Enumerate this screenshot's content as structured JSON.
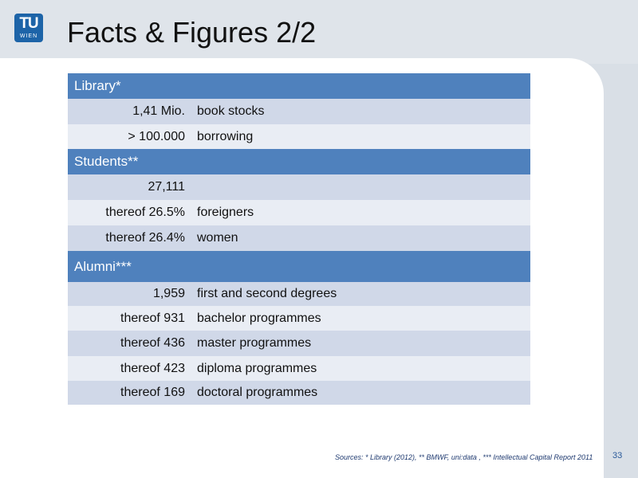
{
  "header": {
    "logo_top": "TU",
    "logo_bottom": "WIEN",
    "title": "Facts & Figures 2/2"
  },
  "colors": {
    "section_header": "#4f81bd",
    "row_dark": "#d0d8e8",
    "row_light": "#e9edf4",
    "logo": "#1d64a8"
  },
  "table": {
    "library": {
      "label": "Library*",
      "rows": [
        {
          "value": "1,41 Mio.",
          "desc": "book stocks"
        },
        {
          "value": "> 100.000",
          "desc": "borrowing"
        }
      ]
    },
    "students": {
      "label": "Students**",
      "rows": [
        {
          "value": "27,111",
          "desc": ""
        },
        {
          "value": "thereof 26.5%",
          "desc": "foreigners"
        },
        {
          "value": "thereof 26.4%",
          "desc": "women"
        }
      ]
    },
    "alumni": {
      "label": "Alumni***",
      "rows": [
        {
          "value": "1,959",
          "desc": "first and second degrees"
        },
        {
          "value": "thereof 931",
          "desc": "bachelor programmes"
        },
        {
          "value": "thereof 436",
          "desc": "master programmes"
        },
        {
          "value": "thereof 423",
          "desc": "diploma programmes"
        },
        {
          "value": "thereof 169",
          "desc": "doctoral programmes"
        }
      ]
    }
  },
  "footer": {
    "sources": "Sources: * Library (2012), ** BMWF, uni:data , *** Intellectual Capital Report 2011",
    "page_number": "33"
  }
}
